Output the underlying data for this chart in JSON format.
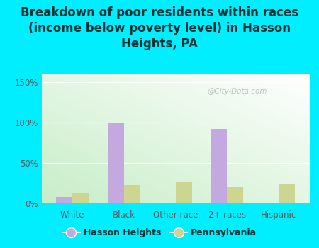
{
  "title": "Breakdown of poor residents within races\n(income below poverty level) in Hasson\nHeights, PA",
  "categories": [
    "White",
    "Black",
    "Other race",
    "2+ races",
    "Hispanic"
  ],
  "hasson_heights": [
    8,
    100,
    0,
    92,
    0
  ],
  "pennsylvania": [
    12,
    23,
    26,
    20,
    25
  ],
  "hasson_color": "#c4a8e0",
  "pennsylvania_color": "#cdd690",
  "background_color": "#00eeff",
  "ylim": [
    0,
    160
  ],
  "yticks": [
    0,
    50,
    100,
    150
  ],
  "ytick_labels": [
    "0%",
    "50%",
    "100%",
    "150%"
  ],
  "title_fontsize": 12,
  "legend_labels": [
    "Hasson Heights",
    "Pennsylvania"
  ],
  "watermark": "@City-Data.com",
  "title_color": "#003333",
  "tick_color": "#555555",
  "bar_width": 0.32
}
